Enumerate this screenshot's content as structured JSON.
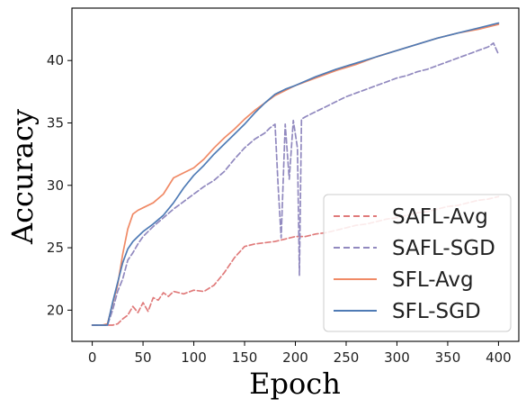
{
  "chart_data": {
    "type": "line",
    "title": "",
    "xlabel": "Epoch",
    "ylabel": "Accuracy",
    "xlim": [
      -20,
      420
    ],
    "ylim": [
      17.5,
      44.2
    ],
    "xticks": [
      0,
      50,
      100,
      150,
      200,
      250,
      300,
      350,
      400
    ],
    "yticks": [
      20,
      25,
      30,
      35,
      40
    ],
    "grid": false,
    "legend_position": "lower-right",
    "series": [
      {
        "name": "SAFL-Avg",
        "color": "#e07b7b",
        "style": "dashed",
        "x": [
          0,
          10,
          20,
          25,
          30,
          35,
          40,
          45,
          50,
          55,
          60,
          65,
          70,
          75,
          80,
          90,
          100,
          110,
          120,
          130,
          140,
          150,
          160,
          170,
          180,
          190,
          200,
          210,
          220,
          230,
          240,
          250,
          260,
          270,
          280,
          290,
          300,
          310,
          320,
          330,
          340,
          350,
          360,
          370,
          380,
          390,
          400
        ],
        "y": [
          18.8,
          18.8,
          18.8,
          18.9,
          19.3,
          19.6,
          20.3,
          19.8,
          20.6,
          19.9,
          21.0,
          20.8,
          21.4,
          21.1,
          21.5,
          21.3,
          21.6,
          21.5,
          22.0,
          23.0,
          24.2,
          25.1,
          25.3,
          25.4,
          25.5,
          25.7,
          25.9,
          25.9,
          26.1,
          26.2,
          26.4,
          26.6,
          26.8,
          26.9,
          27.1,
          27.3,
          27.4,
          27.6,
          27.8,
          27.9,
          28.1,
          28.3,
          28.4,
          28.6,
          28.8,
          28.9,
          29.1
        ]
      },
      {
        "name": "SAFL-SGD",
        "color": "#9189bf",
        "style": "dashed",
        "x": [
          0,
          10,
          15,
          20,
          25,
          30,
          35,
          40,
          45,
          50,
          60,
          70,
          80,
          90,
          100,
          110,
          120,
          130,
          140,
          150,
          160,
          170,
          175,
          180,
          183,
          186,
          190,
          194,
          198,
          202,
          204,
          206,
          210,
          220,
          230,
          240,
          250,
          260,
          270,
          280,
          290,
          300,
          310,
          320,
          330,
          340,
          350,
          360,
          370,
          380,
          390,
          395,
          400
        ],
        "y": [
          18.8,
          18.8,
          18.8,
          20.0,
          21.5,
          22.5,
          24.0,
          24.6,
          25.3,
          25.9,
          26.7,
          27.4,
          28.1,
          28.7,
          29.3,
          29.9,
          30.4,
          31.1,
          32.1,
          33.0,
          33.7,
          34.2,
          34.6,
          34.9,
          30.0,
          25.8,
          34.9,
          30.5,
          35.2,
          33.0,
          22.8,
          35.3,
          35.5,
          35.9,
          36.3,
          36.7,
          37.1,
          37.4,
          37.7,
          38.0,
          38.3,
          38.6,
          38.8,
          39.1,
          39.3,
          39.6,
          39.9,
          40.2,
          40.5,
          40.8,
          41.1,
          41.4,
          40.5
        ]
      },
      {
        "name": "SFL-Avg",
        "color": "#f08a66",
        "style": "solid",
        "x": [
          0,
          10,
          15,
          20,
          25,
          30,
          35,
          40,
          45,
          50,
          60,
          70,
          80,
          90,
          100,
          110,
          120,
          130,
          140,
          150,
          160,
          170,
          180,
          190,
          200,
          220,
          240,
          260,
          280,
          300,
          320,
          340,
          360,
          380,
          400
        ],
        "y": [
          18.8,
          18.8,
          18.9,
          20.5,
          22.0,
          24.5,
          26.5,
          27.7,
          28.0,
          28.2,
          28.6,
          29.3,
          30.6,
          31.0,
          31.4,
          32.1,
          33.0,
          33.8,
          34.5,
          35.3,
          36.0,
          36.6,
          37.2,
          37.6,
          38.0,
          38.6,
          39.2,
          39.7,
          40.3,
          40.8,
          41.3,
          41.8,
          42.2,
          42.5,
          42.9
        ]
      },
      {
        "name": "SFL-SGD",
        "color": "#4f7bb5",
        "style": "solid",
        "x": [
          0,
          10,
          15,
          20,
          25,
          30,
          35,
          40,
          45,
          50,
          60,
          70,
          80,
          90,
          100,
          110,
          120,
          130,
          140,
          150,
          160,
          170,
          180,
          190,
          200,
          220,
          240,
          260,
          280,
          300,
          320,
          340,
          360,
          380,
          400
        ],
        "y": [
          18.8,
          18.8,
          18.8,
          20.6,
          22.2,
          23.8,
          24.9,
          25.5,
          25.9,
          26.3,
          26.9,
          27.6,
          28.6,
          29.8,
          30.8,
          31.6,
          32.5,
          33.3,
          34.1,
          34.9,
          35.8,
          36.6,
          37.3,
          37.7,
          38.0,
          38.7,
          39.3,
          39.8,
          40.3,
          40.8,
          41.3,
          41.8,
          42.2,
          42.6,
          43.0
        ]
      }
    ]
  }
}
